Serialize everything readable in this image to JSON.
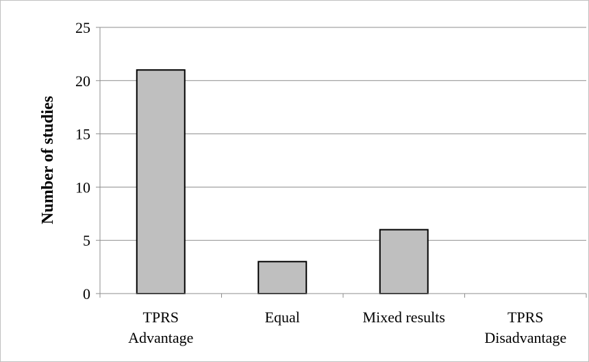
{
  "chart_data": {
    "type": "bar",
    "categories": [
      [
        "TPRS",
        "Advantage"
      ],
      [
        "Equal"
      ],
      [
        "Mixed results"
      ],
      [
        "TPRS",
        "Disadvantage"
      ]
    ],
    "values": [
      21,
      3,
      6,
      0
    ],
    "ylabel": "Number of studies",
    "xlabel": "",
    "ylim": [
      0,
      25
    ],
    "yticks": [
      0,
      5,
      10,
      15,
      20,
      25
    ],
    "grid": true,
    "legend": "none",
    "colors": {
      "bar_fill": "#bfbfbf",
      "bar_stroke": "#000000",
      "grid": "#8c8c8c",
      "axis": "#8c8c8c"
    }
  }
}
